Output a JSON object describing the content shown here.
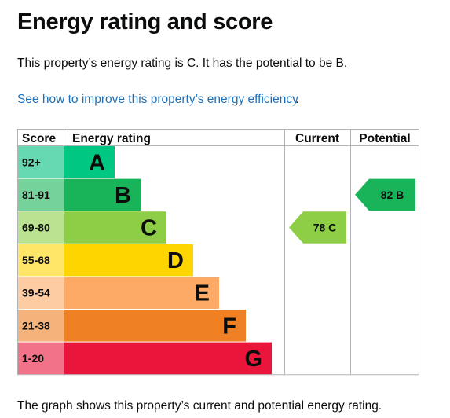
{
  "page": {
    "title": "Energy rating and score",
    "summary": "This property’s energy rating is C. It has the potential to be B.",
    "link_text": "See how to improve this property’s energy efficiency",
    "link_suffix": ".",
    "caption": "The graph shows this property’s current and potential energy rating."
  },
  "chart_data": {
    "type": "table",
    "headers": {
      "score": "Score",
      "rating": "Energy rating",
      "current": "Current",
      "potential": "Potential"
    },
    "bands": [
      {
        "letter": "A",
        "range": "92+",
        "color": "#00c781",
        "score_color": "#66d9b3"
      },
      {
        "letter": "B",
        "range": "81-91",
        "color": "#19b459",
        "score_color": "#75d29b"
      },
      {
        "letter": "C",
        "range": "69-80",
        "color": "#8dce46",
        "score_color": "#bbe290"
      },
      {
        "letter": "D",
        "range": "55-68",
        "color": "#ffd500",
        "score_color": "#ffe666"
      },
      {
        "letter": "E",
        "range": "39-54",
        "color": "#fcaa65",
        "score_color": "#fdcca3"
      },
      {
        "letter": "F",
        "range": "21-38",
        "color": "#ef8023",
        "score_color": "#f5b37b"
      },
      {
        "letter": "G",
        "range": "1-20",
        "color": "#e9153b",
        "score_color": "#f27389"
      }
    ],
    "current": {
      "score": 78,
      "band": "C",
      "label": "78 C"
    },
    "potential": {
      "score": 82,
      "band": "B",
      "label": "82 B"
    }
  }
}
